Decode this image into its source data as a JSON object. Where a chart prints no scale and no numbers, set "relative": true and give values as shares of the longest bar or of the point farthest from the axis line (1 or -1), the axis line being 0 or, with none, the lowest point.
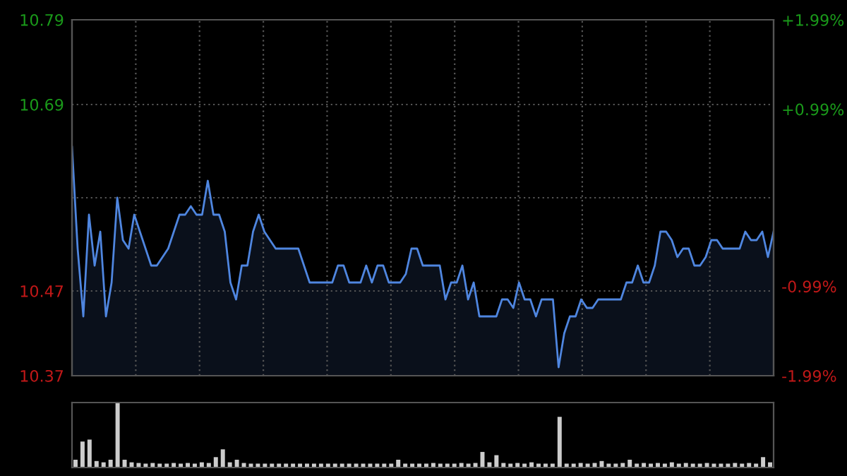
{
  "chart_data": [
    {
      "type": "area",
      "ylim": [
        10.37,
        10.79
      ],
      "yticks": [
        10.37,
        10.47,
        {
          "value": 10.58,
          "label": null
        },
        10.69,
        10.79
      ],
      "y2lim": [
        -1.99,
        1.99
      ],
      "y2ticks": [
        {
          "value": -1.99,
          "label": "-1.99%"
        },
        {
          "value": -0.99,
          "label": "-0.99%"
        },
        {
          "value": 0,
          "label": null
        },
        {
          "value": 0.99,
          "label": "+0.99%"
        },
        {
          "value": 1.99,
          "label": "+1.99%"
        }
      ],
      "grid": true,
      "tick_labels": "y",
      "categories": [
        null,
        null,
        null,
        null,
        null,
        null,
        null,
        null,
        null,
        null,
        null,
        null,
        null,
        null,
        null,
        null,
        null,
        null,
        null,
        null,
        null,
        null,
        null,
        null,
        null,
        null,
        null,
        null,
        null,
        null,
        null,
        null,
        null,
        null,
        null,
        null,
        null,
        null,
        null,
        null,
        null,
        null,
        null,
        null,
        null,
        null,
        null,
        null,
        null,
        null,
        null,
        null,
        null,
        null,
        null,
        null,
        null,
        null,
        null,
        null,
        null,
        null,
        null,
        null,
        null,
        null,
        null,
        null,
        null,
        null,
        null,
        null,
        null,
        null,
        null,
        null,
        null,
        null,
        null,
        null,
        null,
        null,
        null,
        null,
        null,
        null,
        null,
        null,
        null,
        null,
        null,
        null,
        null,
        null,
        null,
        null,
        null,
        null,
        null,
        null,
        null,
        null,
        null,
        null,
        null,
        null,
        null,
        null,
        null,
        null,
        null,
        null,
        null,
        null,
        null,
        null,
        null,
        null,
        null,
        null,
        null,
        null,
        null,
        null,
        null
      ],
      "series": [
        {
          "color": "#4f86e0",
          "values": [
            10.64,
            10.52,
            10.44,
            10.56,
            10.5,
            10.54,
            10.44,
            10.48,
            10.58,
            10.53,
            10.52,
            10.56,
            10.54,
            10.52,
            10.5,
            10.5,
            10.51,
            10.52,
            10.54,
            10.56,
            10.56,
            10.57,
            10.56,
            10.56,
            10.6,
            10.56,
            10.56,
            10.54,
            10.48,
            10.46,
            10.5,
            10.5,
            10.54,
            10.56,
            10.54,
            10.53,
            10.52,
            10.52,
            10.52,
            10.52,
            10.52,
            10.5,
            10.48,
            10.48,
            10.48,
            10.48,
            10.48,
            10.5,
            10.5,
            10.48,
            10.48,
            10.48,
            10.5,
            10.48,
            10.5,
            10.5,
            10.48,
            10.48,
            10.48,
            10.49,
            10.52,
            10.52,
            10.5,
            10.5,
            10.5,
            10.5,
            10.46,
            10.48,
            10.48,
            10.5,
            10.46,
            10.48,
            10.44,
            10.44,
            10.44,
            10.44,
            10.46,
            10.46,
            10.45,
            10.48,
            10.46,
            10.46,
            10.44,
            10.46,
            10.46,
            10.46,
            10.38,
            10.42,
            10.44,
            10.44,
            10.46,
            10.45,
            10.45,
            10.46,
            10.46,
            10.46,
            10.46,
            10.46,
            10.48,
            10.48,
            10.5,
            10.48,
            10.48,
            10.5,
            10.54,
            10.54,
            10.53,
            10.51,
            10.52,
            10.52,
            10.5,
            10.5,
            10.51,
            10.53,
            10.53,
            10.52,
            10.52,
            10.52,
            10.52,
            10.54,
            10.53,
            10.53,
            10.54,
            10.51,
            10.54
          ]
        }
      ]
    },
    {
      "type": "bar",
      "relative": true,
      "tick_labels": false,
      "color": "#cccccc",
      "categories": [
        null,
        null,
        null,
        null,
        null,
        null,
        null,
        null,
        null,
        null,
        null,
        null,
        null,
        null,
        null,
        null,
        null,
        null,
        null,
        null,
        null,
        null,
        null,
        null,
        null,
        null,
        null,
        null,
        null,
        null,
        null,
        null,
        null,
        null,
        null,
        null,
        null,
        null,
        null,
        null,
        null,
        null,
        null,
        null,
        null,
        null,
        null,
        null,
        null,
        null,
        null,
        null,
        null,
        null,
        null,
        null,
        null,
        null,
        null,
        null,
        null,
        null,
        null,
        null,
        null,
        null,
        null,
        null,
        null,
        null,
        null,
        null,
        null,
        null,
        null,
        null,
        null,
        null,
        null,
        null,
        null,
        null,
        null,
        null,
        null,
        null,
        null,
        null,
        null,
        null,
        null,
        null,
        null,
        null,
        null,
        null,
        null,
        null,
        null,
        null
      ],
      "values": [
        0.12,
        0.4,
        0.43,
        0.1,
        0.08,
        0.12,
        1.0,
        0.12,
        0.08,
        0.07,
        0.06,
        0.07,
        0.06,
        0.06,
        0.07,
        0.06,
        0.07,
        0.06,
        0.08,
        0.07,
        0.16,
        0.28,
        0.08,
        0.12,
        0.07,
        0.06,
        0.06,
        0.06,
        0.06,
        0.06,
        0.06,
        0.06,
        0.06,
        0.06,
        0.06,
        0.06,
        0.06,
        0.06,
        0.06,
        0.06,
        0.06,
        0.06,
        0.06,
        0.06,
        0.06,
        0.06,
        0.12,
        0.06,
        0.06,
        0.06,
        0.06,
        0.07,
        0.06,
        0.06,
        0.06,
        0.07,
        0.06,
        0.07,
        0.24,
        0.08,
        0.19,
        0.07,
        0.06,
        0.07,
        0.06,
        0.08,
        0.06,
        0.06,
        0.06,
        0.78,
        0.06,
        0.06,
        0.07,
        0.06,
        0.07,
        0.1,
        0.06,
        0.06,
        0.07,
        0.12,
        0.06,
        0.07,
        0.06,
        0.07,
        0.06,
        0.08,
        0.06,
        0.07,
        0.06,
        0.06,
        0.07,
        0.06,
        0.06,
        0.06,
        0.07,
        0.06,
        0.07,
        0.06,
        0.16,
        0.08
      ]
    }
  ]
}
